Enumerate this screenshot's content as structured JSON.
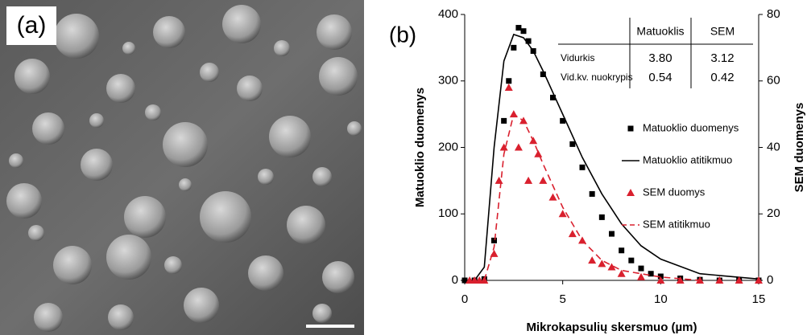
{
  "panel_a_label": "(a)",
  "chart_data": {
    "type": "scatter",
    "panel_label": "(b)",
    "xlabel": "Mikrokapsulių skersmuo (µm)",
    "ylabel": "Matuoklio duomenys",
    "y2label": "SEM duomenys",
    "xlim": [
      0,
      15
    ],
    "xticks": [
      0,
      5,
      10,
      15
    ],
    "ylim": [
      0,
      400
    ],
    "yticks": [
      0,
      100,
      200,
      300,
      400
    ],
    "y2lim": [
      0,
      80
    ],
    "y2ticks": [
      0,
      20,
      40,
      60,
      80
    ],
    "grid": false,
    "series": [
      {
        "name": "Matuoklio duomenys",
        "kind": "points",
        "marker": "square",
        "color": "#000000",
        "x": [
          0,
          0.5,
          1,
          1.5,
          2,
          2.25,
          2.5,
          2.75,
          3,
          3.25,
          3.5,
          4,
          4.5,
          5,
          5.5,
          6,
          6.5,
          7,
          7.5,
          8,
          8.5,
          9,
          9.5,
          10,
          11,
          12,
          13,
          14,
          15
        ],
        "values": [
          0,
          0,
          2,
          60,
          240,
          300,
          350,
          380,
          375,
          360,
          345,
          310,
          275,
          240,
          205,
          170,
          130,
          95,
          70,
          45,
          30,
          18,
          10,
          6,
          3,
          1,
          0,
          0,
          0
        ]
      },
      {
        "name": "Matuoklio atitikmuo",
        "kind": "line",
        "dash": false,
        "color": "#000000",
        "x": [
          0,
          0.5,
          1,
          1.5,
          2,
          2.5,
          3,
          3.5,
          4,
          5,
          6,
          7,
          8,
          9,
          10,
          12,
          15
        ],
        "values": [
          0,
          0,
          20,
          200,
          330,
          370,
          365,
          345,
          315,
          250,
          185,
          130,
          85,
          52,
          32,
          10,
          2
        ]
      },
      {
        "name": "SEM duomys",
        "kind": "points",
        "marker": "triangle",
        "color": "#d9202e",
        "axis": "y2",
        "x": [
          0.25,
          0.5,
          0.75,
          1,
          1.5,
          1.75,
          2,
          2.25,
          2.5,
          2.75,
          3,
          3.25,
          3.5,
          3.75,
          4,
          4.5,
          5,
          5.5,
          6,
          6.5,
          7,
          7.5,
          8,
          9,
          10,
          11,
          12,
          13,
          14,
          15
        ],
        "values": [
          0,
          0,
          0,
          0,
          8,
          30,
          40,
          58,
          50,
          40,
          48,
          30,
          42,
          38,
          30,
          25,
          20,
          14,
          12,
          6,
          5,
          4,
          2,
          1,
          0,
          0,
          0,
          0,
          0,
          0
        ]
      },
      {
        "name": "SEM atitikmuo",
        "kind": "line",
        "dash": true,
        "color": "#d9202e",
        "axis": "y2",
        "x": [
          1,
          1.5,
          2,
          2.5,
          3,
          3.5,
          4,
          5,
          6,
          7,
          8,
          10,
          12
        ],
        "values": [
          0,
          10,
          38,
          50,
          48,
          42,
          35,
          22,
          12,
          6,
          3,
          1,
          0
        ]
      }
    ],
    "table": {
      "columns": [
        "Matuoklis",
        "SEM"
      ],
      "rows": [
        [
          "Vidurkis",
          "3.80",
          "3.12"
        ],
        [
          "Vid.kv. nuokrypis",
          "0.54",
          "0.42"
        ]
      ]
    }
  }
}
